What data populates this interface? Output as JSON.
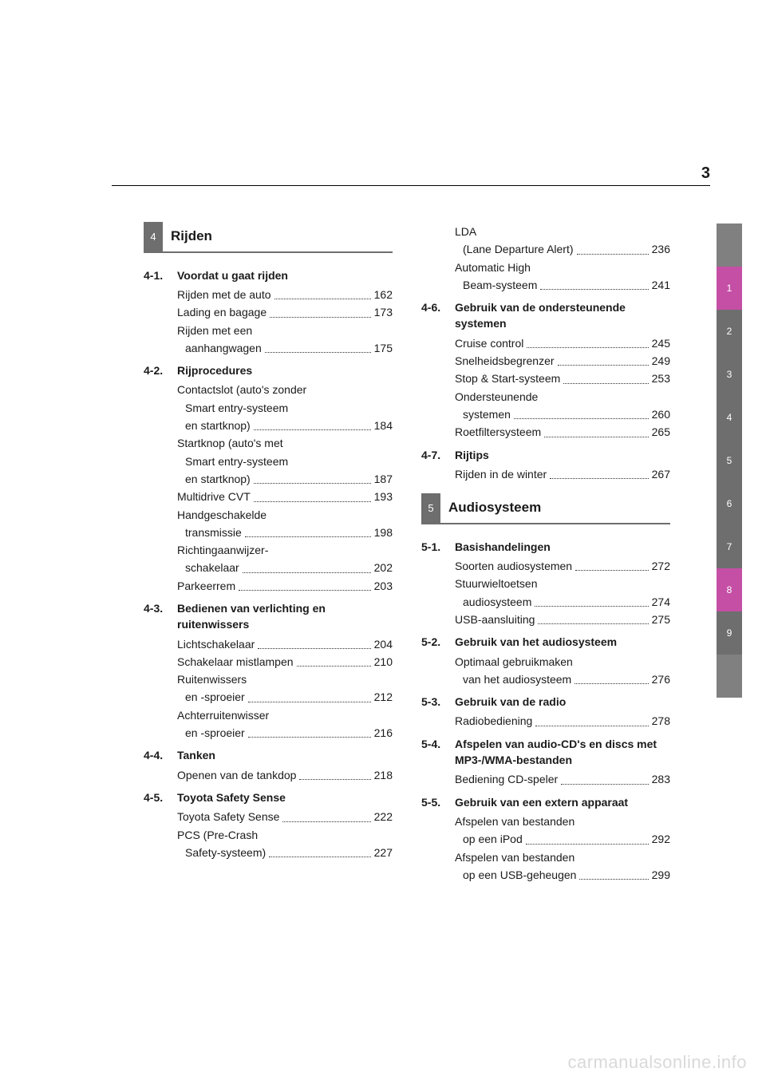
{
  "page_number": "3",
  "watermark": "carmanualsonline.info",
  "colors": {
    "tab_gray": "#6e6e6e",
    "tab_magenta": "#c54fa5",
    "tab_blank": "#808080"
  },
  "chapters": [
    {
      "num": "4",
      "title": "Rijden"
    },
    {
      "num": "5",
      "title": "Audiosysteem"
    }
  ],
  "left_sections": [
    {
      "num": "4-1.",
      "title": "Voordat u gaat rijden",
      "items": [
        {
          "label": "Rijden met de auto",
          "page": "162"
        },
        {
          "label": "Lading en bagage",
          "page": "173"
        },
        {
          "label": "Rijden met een",
          "cont": "aanhangwagen",
          "page": "175"
        }
      ]
    },
    {
      "num": "4-2.",
      "title": "Rijprocedures",
      "items": [
        {
          "label": "Contactslot (auto's zonder",
          "cont2": "Smart entry-systeem",
          "cont": "en startknop)",
          "page": "184"
        },
        {
          "label": "Startknop (auto's met",
          "cont2": "Smart entry-systeem",
          "cont": "en startknop)",
          "page": "187"
        },
        {
          "label": "Multidrive CVT",
          "page": "193"
        },
        {
          "label": "Handgeschakelde",
          "cont": "transmissie",
          "page": "198"
        },
        {
          "label": "Richtingaanwijzer-",
          "cont": "schakelaar",
          "page": "202"
        },
        {
          "label": "Parkeerrem",
          "page": "203"
        }
      ]
    },
    {
      "num": "4-3.",
      "title": "Bedienen van verlichting en ruitenwissers",
      "items": [
        {
          "label": "Lichtschakelaar",
          "page": "204"
        },
        {
          "label": "Schakelaar mistlampen",
          "page": "210"
        },
        {
          "label": "Ruitenwissers",
          "cont": "en -sproeier",
          "page": "212"
        },
        {
          "label": "Achterruitenwisser",
          "cont": "en -sproeier",
          "page": "216"
        }
      ]
    },
    {
      "num": "4-4.",
      "title": "Tanken",
      "items": [
        {
          "label": "Openen van de tankdop",
          "page": "218"
        }
      ]
    },
    {
      "num": "4-5.",
      "title": "Toyota Safety Sense",
      "items": [
        {
          "label": "Toyota Safety Sense",
          "page": "222"
        },
        {
          "label": "PCS (Pre-Crash",
          "cont": "Safety-systeem)",
          "page": "227"
        }
      ]
    }
  ],
  "right_top_items": [
    {
      "label": "LDA",
      "cont": "(Lane Departure Alert)",
      "page": "236"
    },
    {
      "label": "Automatic High",
      "cont": "Beam-systeem",
      "page": "241"
    }
  ],
  "right_sections_a": [
    {
      "num": "4-6.",
      "title": "Gebruik van de ondersteunende systemen",
      "items": [
        {
          "label": "Cruise control",
          "page": "245"
        },
        {
          "label": "Snelheidsbegrenzer",
          "page": "249"
        },
        {
          "label": "Stop & Start-systeem",
          "page": "253"
        },
        {
          "label": "Ondersteunende",
          "cont": "systemen",
          "page": "260"
        },
        {
          "label": "Roetfiltersysteem",
          "page": "265"
        }
      ]
    },
    {
      "num": "4-7.",
      "title": "Rijtips",
      "items": [
        {
          "label": "Rijden in de winter",
          "page": "267"
        }
      ]
    }
  ],
  "right_sections_b": [
    {
      "num": "5-1.",
      "title": "Basishandelingen",
      "items": [
        {
          "label": "Soorten audiosystemen",
          "page": "272"
        },
        {
          "label": "Stuurwieltoetsen",
          "cont": "audiosysteem",
          "page": "274"
        },
        {
          "label": "USB-aansluiting",
          "page": "275"
        }
      ]
    },
    {
      "num": "5-2.",
      "title": "Gebruik van het audiosysteem",
      "items": [
        {
          "label": "Optimaal gebruikmaken",
          "cont": "van het audiosysteem",
          "page": "276"
        }
      ]
    },
    {
      "num": "5-3.",
      "title": "Gebruik van de radio",
      "items": [
        {
          "label": "Radiobediening",
          "page": "278"
        }
      ]
    },
    {
      "num": "5-4.",
      "title": "Afspelen van audio-CD's en discs met MP3-/WMA-bestanden",
      "items": [
        {
          "label": "Bediening CD-speler",
          "page": "283"
        }
      ]
    },
    {
      "num": "5-5.",
      "title": "Gebruik van een extern apparaat",
      "items": [
        {
          "label": "Afspelen van bestanden",
          "cont": "op een iPod",
          "page": "292"
        },
        {
          "label": "Afspelen van bestanden",
          "cont": "op een USB-geheugen",
          "page": "299"
        }
      ]
    }
  ],
  "tabs": [
    {
      "label": "",
      "color": "#808080"
    },
    {
      "label": "1",
      "color": "#c54fa5"
    },
    {
      "label": "2",
      "color": "#6e6e6e"
    },
    {
      "label": "3",
      "color": "#6e6e6e"
    },
    {
      "label": "4",
      "color": "#6e6e6e"
    },
    {
      "label": "5",
      "color": "#6e6e6e"
    },
    {
      "label": "6",
      "color": "#6e6e6e"
    },
    {
      "label": "7",
      "color": "#6e6e6e"
    },
    {
      "label": "8",
      "color": "#c54fa5"
    },
    {
      "label": "9",
      "color": "#6e6e6e"
    },
    {
      "label": "",
      "color": "#808080"
    }
  ]
}
